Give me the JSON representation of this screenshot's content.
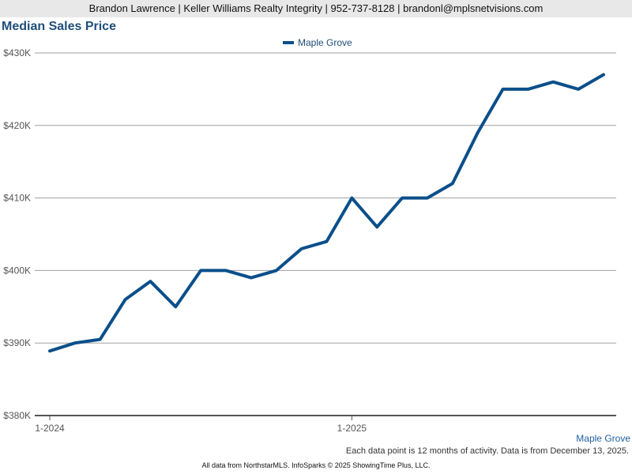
{
  "header": {
    "contact": "Brandon Lawrence | Keller Williams Realty Integrity | 952-737-8128 | brandonl@mplsnetvisions.com"
  },
  "footer": {
    "note": "Each data point is 12 months of activity. Data is from December 13, 2025.",
    "source": "All data from NorthstarMLS. InfoSparks © 2025 ShowingTime Plus, LLC.",
    "series_label": "Maple Grove"
  },
  "colors": {
    "series": "#0b4f8a",
    "grid": "#a0a0a0",
    "title": "#1f4e79"
  },
  "chart_data": {
    "type": "line",
    "title": "Median Sales Price",
    "xlabel": "",
    "ylabel": "",
    "legend_position": "top-center",
    "grid": true,
    "ylim": [
      380000,
      430000
    ],
    "yticks": [
      380000,
      390000,
      400000,
      410000,
      420000,
      430000
    ],
    "ytick_labels": [
      "$380K",
      "$390K",
      "$400K",
      "$410K",
      "$420K",
      "$430K"
    ],
    "xtick_labels": [
      {
        "index": 0,
        "label": "1-2024"
      },
      {
        "index": 12,
        "label": "1-2025"
      }
    ],
    "x": [
      "1-2024",
      "2-2024",
      "3-2024",
      "4-2024",
      "5-2024",
      "6-2024",
      "7-2024",
      "8-2024",
      "9-2024",
      "10-2024",
      "11-2024",
      "12-2024",
      "1-2025",
      "2-2025",
      "3-2025",
      "4-2025",
      "5-2025",
      "6-2025",
      "7-2025",
      "8-2025",
      "9-2025",
      "10-2025",
      "11-2025"
    ],
    "series": [
      {
        "name": "Maple Grove",
        "values": [
          388900,
          390000,
          390500,
          396000,
          398500,
          395000,
          400000,
          400000,
          399000,
          400000,
          403000,
          404000,
          410000,
          406000,
          410000,
          410000,
          412000,
          419000,
          425000,
          425000,
          426000,
          425000,
          427000
        ]
      }
    ]
  }
}
